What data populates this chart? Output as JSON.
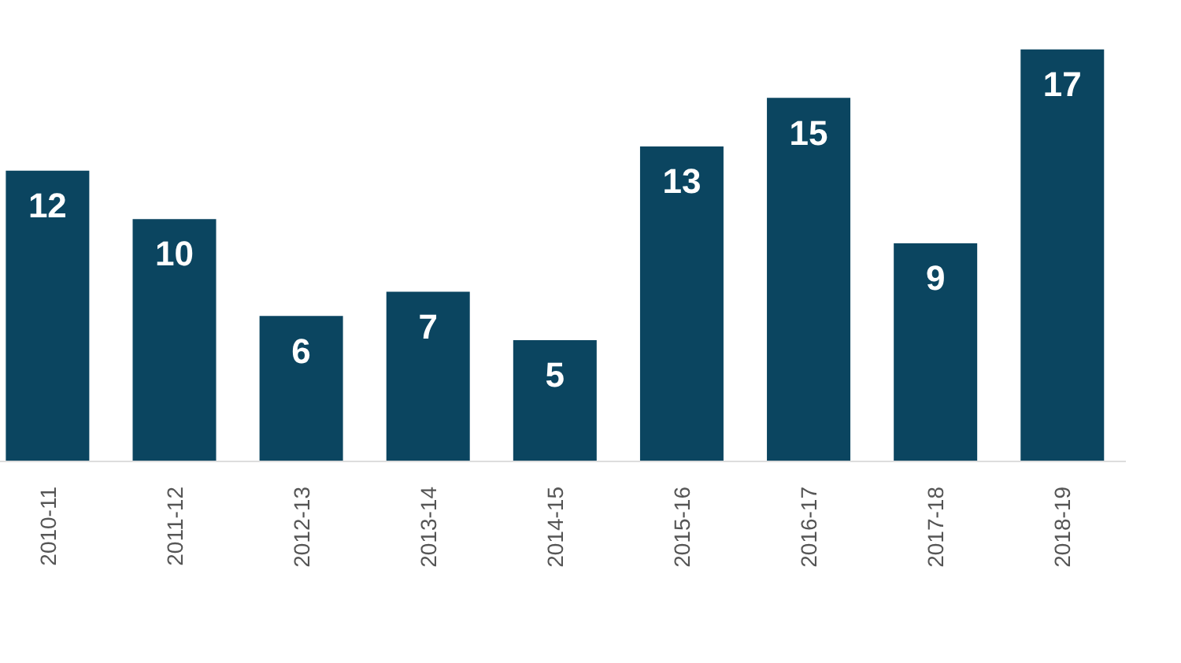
{
  "chart_data": {
    "type": "bar",
    "categories": [
      "2010-11",
      "2011-12",
      "2012-13",
      "2013-14",
      "2014-15",
      "2015-16",
      "2016-17",
      "2017-18",
      "2018-19"
    ],
    "values": [
      12,
      10,
      6,
      7,
      5,
      13,
      15,
      9,
      17
    ],
    "color": "#0b4560",
    "data_labels": true
  }
}
